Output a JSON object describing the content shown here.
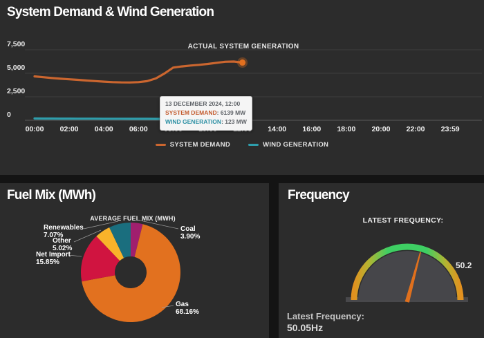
{
  "page": {
    "background": "#141414",
    "panel_background": "#2c2c2c"
  },
  "demand_panel": {
    "title": "System Demand & Wind Generation",
    "annotation": "ACTUAL SYSTEM GENERATION",
    "tooltip": {
      "date": "13 DECEMBER 2024, 12:00",
      "demand_label": "SYSTEM DEMAND",
      "demand_value": "6139 MW",
      "wind_label": "WIND GENERATION",
      "wind_value": "123 MW"
    },
    "legend": [
      {
        "label": "SYSTEM DEMAND"
      },
      {
        "label": "WIND GENERATION"
      }
    ]
  },
  "fuel_panel": {
    "title": "Fuel Mix (MWh)"
  },
  "frequency_panel": {
    "title": "Frequency",
    "header_label": "LATEST FREQUENCY:",
    "tick_label": "50.2",
    "footer_label": "Latest Frequency:",
    "footer_value": "50.05Hz"
  },
  "chart_data": [
    {
      "type": "line",
      "title": "System Demand & Wind Generation",
      "x_ticks": [
        "00:00",
        "02:00",
        "04:00",
        "06:00",
        "08:00",
        "10:00",
        "12:00",
        "14:00",
        "16:00",
        "18:00",
        "20:00",
        "22:00",
        "23:59"
      ],
      "x_range_hours": [
        0,
        24
      ],
      "ylim": [
        0,
        7500
      ],
      "y_ticks": [
        {
          "value": 0,
          "label": "0"
        },
        {
          "value": 2500,
          "label": "2,500"
        },
        {
          "value": 5000,
          "label": "5,000"
        },
        {
          "value": 7500,
          "label": "7,500"
        }
      ],
      "grid": "horizontal",
      "legend_position": "bottom",
      "series": [
        {
          "name": "SYSTEM DEMAND",
          "color": "#cb662f",
          "dot_color": "#e2701f",
          "unit": "MW",
          "hours": [
            0,
            0.5,
            1,
            1.5,
            2,
            2.5,
            3,
            3.5,
            4,
            4.5,
            5,
            5.5,
            6,
            6.5,
            7,
            7.5,
            8,
            8.5,
            9,
            9.5,
            10,
            10.5,
            11,
            11.5,
            12
          ],
          "values": [
            4670,
            4580,
            4490,
            4420,
            4360,
            4300,
            4230,
            4170,
            4110,
            4060,
            4030,
            4020,
            4060,
            4160,
            4450,
            4980,
            5600,
            5730,
            5820,
            5900,
            5990,
            6110,
            6230,
            6250,
            6139
          ]
        },
        {
          "name": "WIND GENERATION",
          "color": "#2e9eac",
          "dot_color": "#2e9eac",
          "unit": "MW",
          "hours": [
            0,
            0.5,
            1,
            1.5,
            2,
            2.5,
            3,
            3.5,
            4,
            4.5,
            5,
            5.5,
            6,
            6.5,
            7,
            7.5,
            8,
            8.5,
            9,
            9.5,
            10,
            10.5,
            11,
            11.5,
            12
          ],
          "values": [
            190,
            185,
            182,
            178,
            175,
            172,
            170,
            168,
            165,
            162,
            160,
            158,
            155,
            152,
            150,
            148,
            145,
            142,
            140,
            137,
            134,
            130,
            127,
            125,
            123
          ]
        }
      ]
    },
    {
      "type": "pie",
      "title": "AVERAGE FUEL MIX (MWH)",
      "donut": true,
      "start_angle_deg": 0,
      "clockwise": true,
      "slices": [
        {
          "label": "Coal",
          "value_pct": 3.9,
          "pct_label": "3.90%",
          "color": "#a01f6e"
        },
        {
          "label": "Gas",
          "value_pct": 68.16,
          "pct_label": "68.16%",
          "color": "#e2711f"
        },
        {
          "label": "Net Import",
          "value_pct": 15.85,
          "pct_label": "15.85%",
          "color": "#d01440"
        },
        {
          "label": "Other",
          "value_pct": 5.02,
          "pct_label": "5.02%",
          "color": "#f9b32a"
        },
        {
          "label": "Renewables",
          "value_pct": 7.07,
          "pct_label": "7.07%",
          "color": "#1a6e7e"
        }
      ]
    },
    {
      "type": "gauge",
      "value": 50.05,
      "unit": "Hz",
      "value_label": "50.05Hz",
      "shown_tick_label": "50.2",
      "axis_range_estimate": [
        49.7,
        50.3
      ],
      "arc_color_top": "#3ecf63",
      "arc_color_ends": "#e2911f",
      "needle_color": "#e0701d",
      "face_color": "#46464a"
    }
  ]
}
